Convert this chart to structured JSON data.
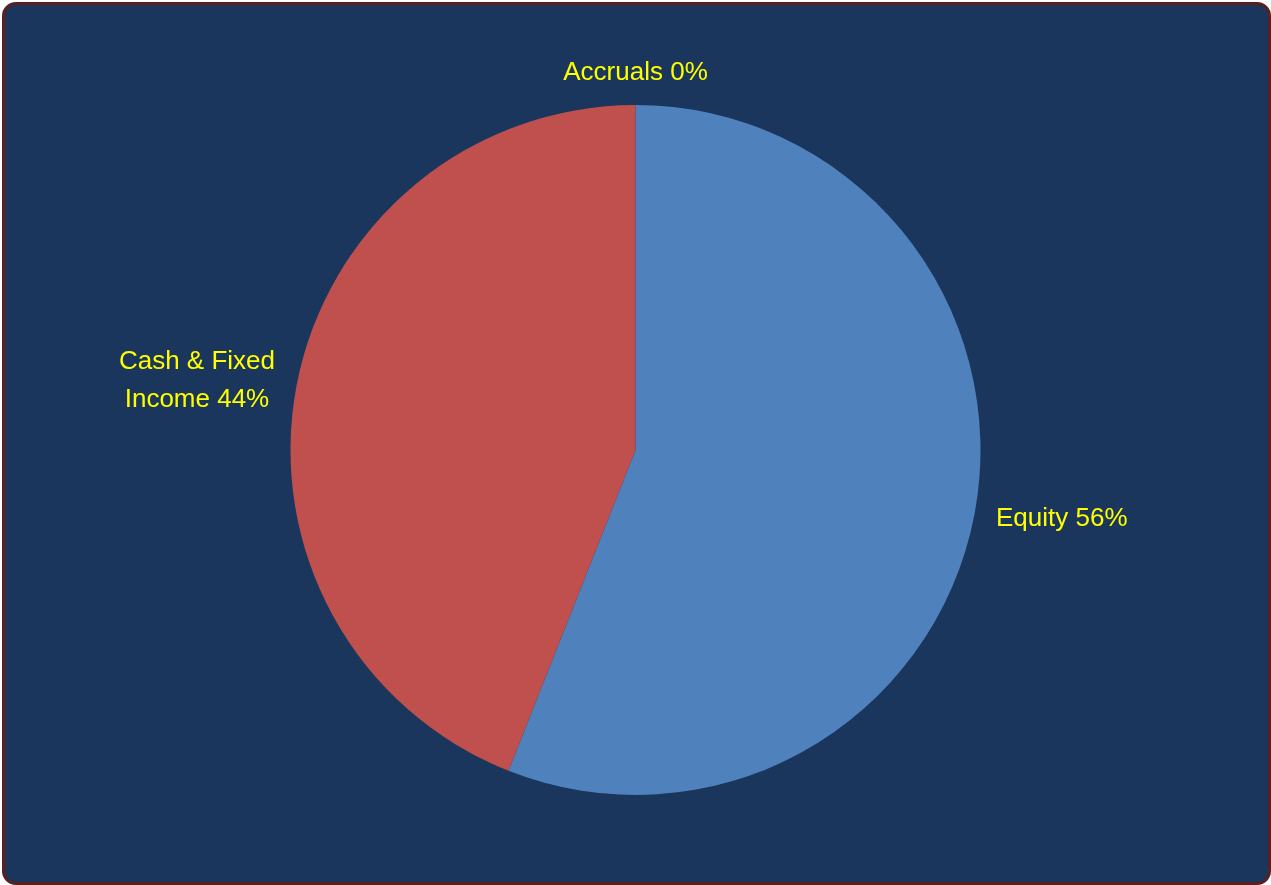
{
  "chart_data": {
    "type": "pie",
    "categories": [
      "Equity",
      "Cash & Fixed Income",
      "Accruals"
    ],
    "values": [
      56,
      44,
      0
    ],
    "value_labels": [
      "56%",
      "44%",
      "0%"
    ],
    "colors": [
      "#4f81bd",
      "#c0504d",
      "#9bbb59"
    ],
    "legend": false
  }
}
